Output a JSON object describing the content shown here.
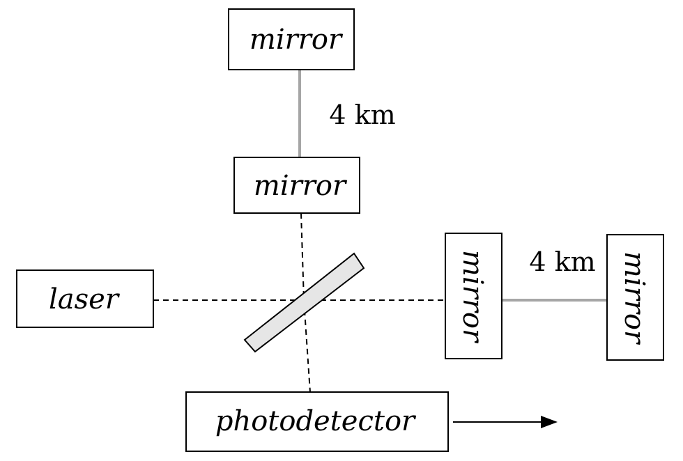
{
  "components": {
    "mirror_top_far": "mirror",
    "mirror_top_near": "mirror",
    "laser": "laser",
    "mirror_right_near": "mirror",
    "mirror_right_far": "mirror",
    "photodetector": "photodetector"
  },
  "distances": {
    "vertical_arm": "4 km",
    "horizontal_arm": "4 km"
  },
  "colors": {
    "stroke": "#000000",
    "arm_line": "#a6a6a6",
    "beam_splitter_fill": "#e6e6e6",
    "background": "#ffffff"
  }
}
